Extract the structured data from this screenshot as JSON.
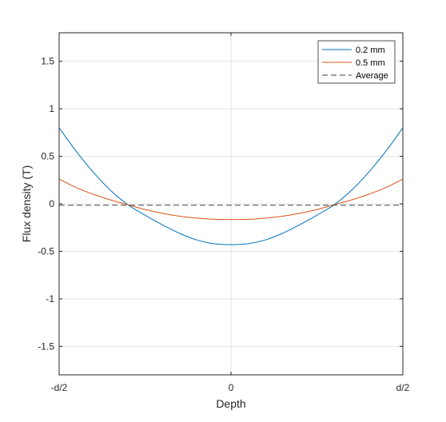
{
  "chart_data": {
    "type": "line",
    "title": "",
    "xlabel": "Depth",
    "ylabel": "Flux density (T)",
    "x_tick_labels": [
      "-d/2",
      "0",
      "d/2"
    ],
    "x_tick_positions": [
      -1,
      0,
      1
    ],
    "y_tick_labels": [
      "-1.5",
      "-1",
      "-0.5",
      "0",
      "0.5",
      "1",
      "1.5"
    ],
    "y_ticks": [
      -1.5,
      -1,
      -0.5,
      0,
      0.5,
      1,
      1.5
    ],
    "xlim": [
      -1,
      1
    ],
    "ylim": [
      -1.8,
      1.8
    ],
    "grid": true,
    "legend_position": "top-right",
    "x": [
      -1,
      -0.9,
      -0.8,
      -0.7,
      -0.6,
      -0.5,
      -0.4,
      -0.3,
      -0.2,
      -0.1,
      0,
      0.1,
      0.2,
      0.3,
      0.4,
      0.5,
      0.6,
      0.7,
      0.8,
      0.9,
      1
    ],
    "series": [
      {
        "name": "0.2 mm",
        "color": "#0072bd",
        "dash": "solid",
        "values": [
          0.8,
          0.55,
          0.33,
          0.14,
          -0.01,
          -0.12,
          -0.22,
          -0.31,
          -0.38,
          -0.42,
          -0.43,
          -0.42,
          -0.38,
          -0.31,
          -0.22,
          -0.12,
          -0.01,
          0.14,
          0.33,
          0.55,
          0.8
        ]
      },
      {
        "name": "0.5 mm",
        "color": "#d95319",
        "dash": "solid",
        "values": [
          0.26,
          0.17,
          0.1,
          0.04,
          -0.01,
          -0.06,
          -0.1,
          -0.13,
          -0.15,
          -0.163,
          -0.165,
          -0.163,
          -0.15,
          -0.13,
          -0.1,
          -0.06,
          -0.01,
          0.04,
          0.1,
          0.17,
          0.26
        ]
      },
      {
        "name": "Average",
        "color": "#404040",
        "dash": "dashed",
        "values": [
          -0.015,
          -0.015,
          -0.015,
          -0.015,
          -0.015,
          -0.015,
          -0.015,
          -0.015,
          -0.015,
          -0.015,
          -0.015,
          -0.015,
          -0.015,
          -0.015,
          -0.015,
          -0.015,
          -0.015,
          -0.015,
          -0.015,
          -0.015,
          -0.015
        ]
      }
    ]
  }
}
